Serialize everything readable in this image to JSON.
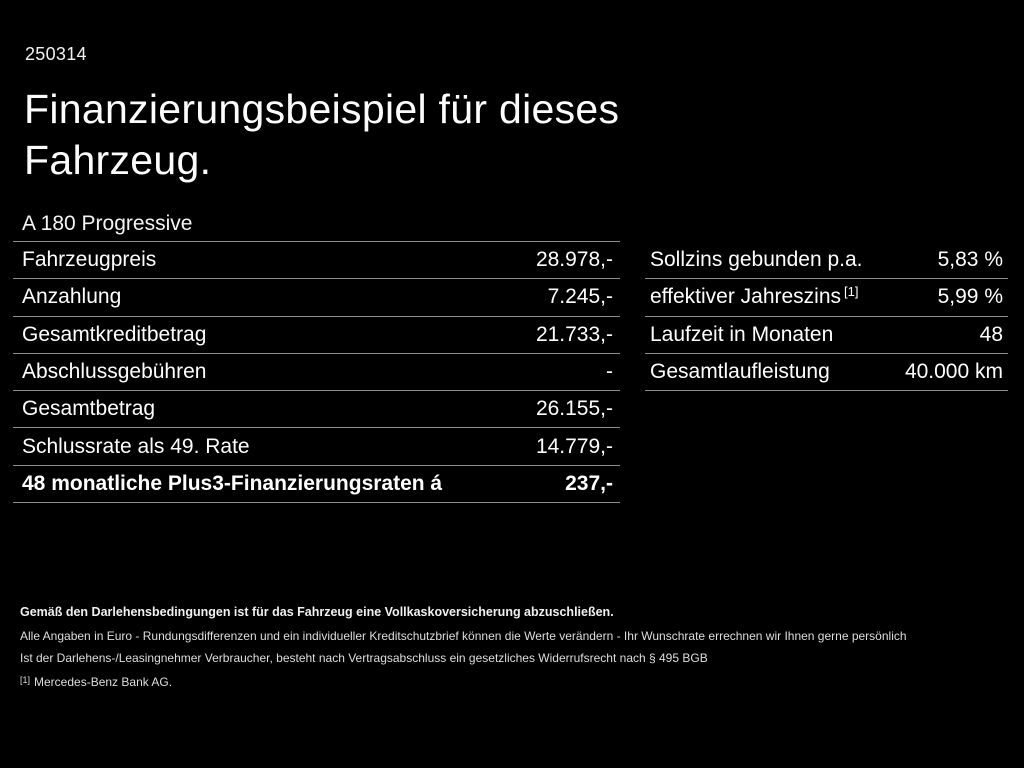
{
  "page": {
    "doc_number": "250314",
    "title_line1": "Finanzierungsbeispiel für dieses",
    "title_line2": "Fahrzeug.",
    "subtitle": "A 180 Progressive"
  },
  "finance_table": {
    "rows": [
      {
        "label": "Fahrzeugpreis",
        "value": "28.978,-"
      },
      {
        "label": "Anzahlung",
        "value": "7.245,-"
      },
      {
        "label": "Gesamtkreditbetrag",
        "value": "21.733,-"
      },
      {
        "label": "Abschlussgebühren",
        "value": "-"
      },
      {
        "label": "Gesamtbetrag",
        "value": "26.155,-"
      },
      {
        "label": "Schlussrate als 49. Rate",
        "value": "14.779,-"
      },
      {
        "label": "48 monatliche Plus3-Finanzierungsraten á",
        "value": "237,-"
      }
    ]
  },
  "conditions_table": {
    "rows": [
      {
        "label": "Sollzins gebunden p.a.",
        "sup": "",
        "value": "5,83 %"
      },
      {
        "label": "effektiver Jahreszins",
        "sup": "[1]",
        "value": "5,99 %"
      },
      {
        "label": "Laufzeit in Monaten",
        "sup": "",
        "value": "48"
      },
      {
        "label": "Gesamtlaufleistung",
        "sup": "",
        "value": "40.000 km"
      }
    ]
  },
  "footer": {
    "line1": "Gemäß den Darlehensbedingungen ist für das Fahrzeug eine Vollkaskoversicherung abzuschließen.",
    "line2": "Alle Angaben in Euro - Rundungsdifferenzen und ein individueller Kreditschutzbrief können die Werte verändern - Ihr Wunschrate errechnen wir Ihnen gerne persönlich",
    "line3": "Ist der Darlehens-/Leasingnehmer Verbraucher, besteht nach Vertragsabschluss ein gesetzliches Widerrufsrecht nach § 495 BGB",
    "footnote_marker": "[1]",
    "footnote_text": "Mercedes-Benz Bank AG."
  },
  "colors": {
    "background": "#000000",
    "text": "#ffffff",
    "divider": "#8f8f8f"
  }
}
